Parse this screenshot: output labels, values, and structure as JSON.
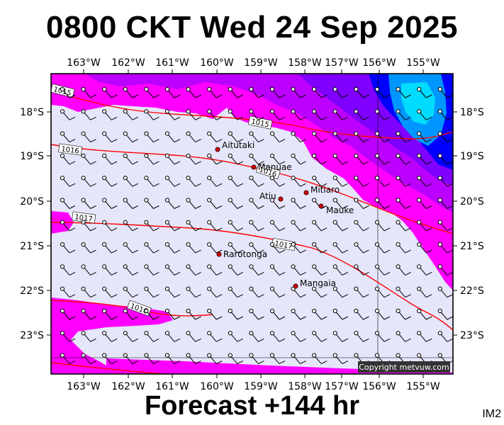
{
  "title": "0800 CKT Wed 24 Sep 2025",
  "footer": "Forecast +144 hr",
  "tag": "IM2",
  "copyright": "Copyright metvuw.com",
  "lon_labels": [
    "163°W",
    "162°W",
    "161°W",
    "160°W",
    "159°W",
    "158°W",
    "157°W",
    "156°W",
    "155°W"
  ],
  "lat_labels": [
    "18°S",
    "19°S",
    "20°S",
    "21°S",
    "22°S",
    "23°S"
  ],
  "isobar_labels": [
    "1015",
    "1015",
    "1016",
    "1016",
    "1017",
    "1017",
    "1016"
  ],
  "places": [
    {
      "name": "Aitutaki"
    },
    {
      "name": "Manuae"
    },
    {
      "name": "Atiu"
    },
    {
      "name": "Mitiaro"
    },
    {
      "name": "Mauke"
    },
    {
      "name": "Rarotonga"
    },
    {
      "name": "Mangaia"
    }
  ],
  "colors": {
    "background": "#e6e6fa",
    "magenta": "#ff00ff",
    "purple": "#b400ff",
    "violet": "#8000ff",
    "blue": "#0000ff",
    "azure": "#0096ff",
    "cyan": "#00dcff",
    "isobar": "#ff0000",
    "place": "#cc0000"
  }
}
